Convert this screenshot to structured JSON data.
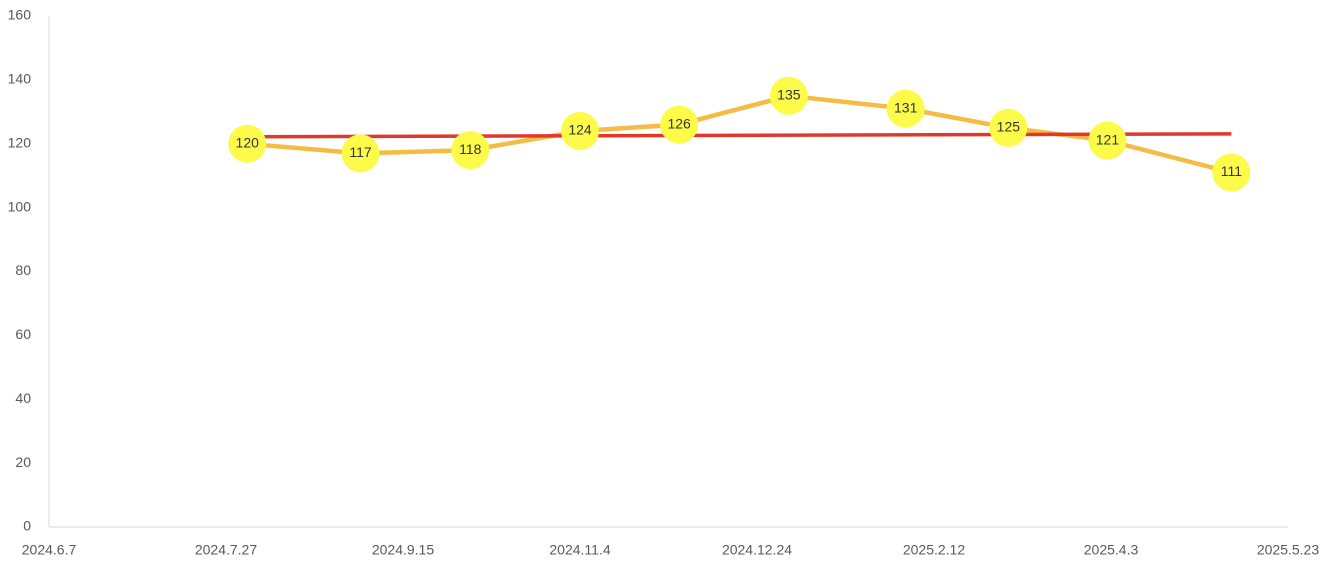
{
  "chart_data": {
    "type": "line",
    "series": [
      {
        "x": [
          "2024-08-02",
          "2024-09-03",
          "2024-10-04",
          "2024-11-04",
          "2024-12-02",
          "2025-01-02",
          "2025-02-04",
          "2025-03-05",
          "2025-04-02",
          "2025-05-07"
        ],
        "values": [
          120,
          117,
          118,
          124,
          126,
          135,
          131,
          125,
          121,
          111
        ],
        "color": "#f4bc45",
        "marker_color": "#fdfb4a",
        "data_labels": true
      },
      {
        "x": [
          "2024-08-02",
          "2025-05-07"
        ],
        "values": [
          122.2,
          123.1
        ],
        "color": "#e0392b",
        "data_labels": false
      }
    ],
    "xlim": [
      "2024-06-07",
      "2025-05-23"
    ],
    "xticks": [
      {
        "value": "2024-06-07",
        "label": "2024.6.7"
      },
      {
        "value": "2024-07-27",
        "label": "2024.7.27"
      },
      {
        "value": "2024-09-15",
        "label": "2024.9.15"
      },
      {
        "value": "2024-11-04",
        "label": "2024.11.4"
      },
      {
        "value": "2024-12-24",
        "label": "2024.12.24"
      },
      {
        "value": "2025-02-12",
        "label": "2025.2.12"
      },
      {
        "value": "2025-04-03",
        "label": "2025.4.3"
      },
      {
        "value": "2025-05-23",
        "label": "2025.5.23"
      }
    ],
    "ylim": [
      0,
      160
    ],
    "yticks": [
      0,
      20,
      40,
      60,
      80,
      100,
      120,
      140,
      160
    ],
    "grid": false
  }
}
